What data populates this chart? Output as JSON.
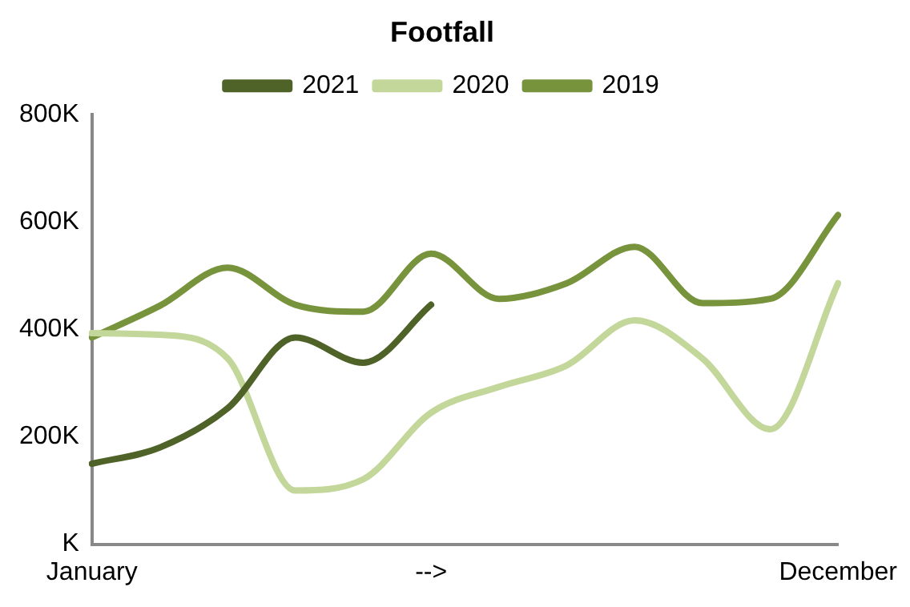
{
  "chart_data": {
    "type": "line",
    "title": "Footfall",
    "categories": [
      "January",
      null,
      null,
      null,
      null,
      "-->",
      null,
      null,
      null,
      null,
      null,
      "December"
    ],
    "series": [
      {
        "name": "2021",
        "color": "#4f6228",
        "values": [
          150000,
          180000,
          253000,
          385000,
          338000,
          446000,
          null,
          null,
          null,
          null,
          null,
          null
        ]
      },
      {
        "name": "2020",
        "color": "#c4d79b",
        "values": [
          393000,
          390000,
          346000,
          100000,
          121000,
          245000,
          293000,
          333000,
          417000,
          346000,
          214000,
          486000
        ]
      },
      {
        "name": "2019",
        "color": "#77933c",
        "values": [
          385000,
          444000,
          515000,
          446000,
          433000,
          541000,
          457000,
          486000,
          554000,
          449000,
          457000,
          613000
        ]
      }
    ],
    "ylim": [
      0,
      800000
    ],
    "yticks": [
      {
        "value": 0,
        "label": "K"
      },
      {
        "value": 200000,
        "label": "200K"
      },
      {
        "value": 400000,
        "label": "400K"
      },
      {
        "value": 600000,
        "label": "600K"
      },
      {
        "value": 800000,
        "label": "800K"
      }
    ],
    "grid": false,
    "legend": "top",
    "marker": "none",
    "line_style": "solid"
  }
}
